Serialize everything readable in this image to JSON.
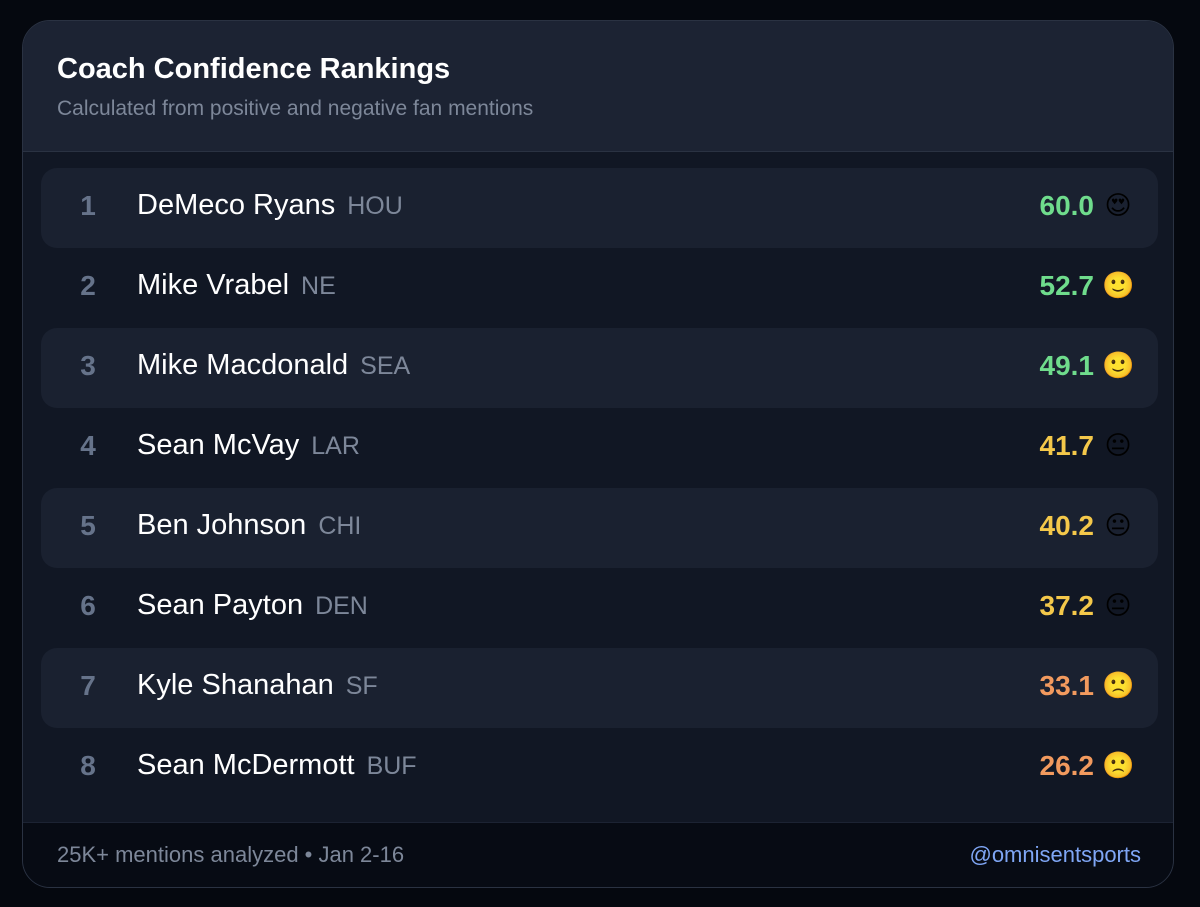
{
  "header": {
    "title": "Coach Confidence Rankings",
    "subtitle": "Calculated from positive and negative fan mentions"
  },
  "table": {
    "rows": [
      {
        "rank": "1",
        "name": "DeMeco Ryans",
        "team": "HOU",
        "score": "60.0",
        "emoji": "😍",
        "color": "#6fdc8c"
      },
      {
        "rank": "2",
        "name": "Mike Vrabel",
        "team": "NE",
        "score": "52.7",
        "emoji": "🙂",
        "color": "#6fdc8c"
      },
      {
        "rank": "3",
        "name": "Mike Macdonald",
        "team": "SEA",
        "score": "49.1",
        "emoji": "🙂",
        "color": "#6fdc8c"
      },
      {
        "rank": "4",
        "name": "Sean McVay",
        "team": "LAR",
        "score": "41.7",
        "emoji": "😐",
        "color": "#f4c84a"
      },
      {
        "rank": "5",
        "name": "Ben Johnson",
        "team": "CHI",
        "score": "40.2",
        "emoji": "😐",
        "color": "#f4c84a"
      },
      {
        "rank": "6",
        "name": "Sean Payton",
        "team": "DEN",
        "score": "37.2",
        "emoji": "😐",
        "color": "#f4c84a"
      },
      {
        "rank": "7",
        "name": "Kyle Shanahan",
        "team": "SF",
        "score": "33.1",
        "emoji": "🙁",
        "color": "#f29a5e"
      },
      {
        "rank": "8",
        "name": "Sean McDermott",
        "team": "BUF",
        "score": "26.2",
        "emoji": "🙁",
        "color": "#f29a5e"
      }
    ]
  },
  "footer": {
    "note": "25K+ mentions analyzed • Jan 2-16",
    "handle": "@omnisentsports"
  }
}
